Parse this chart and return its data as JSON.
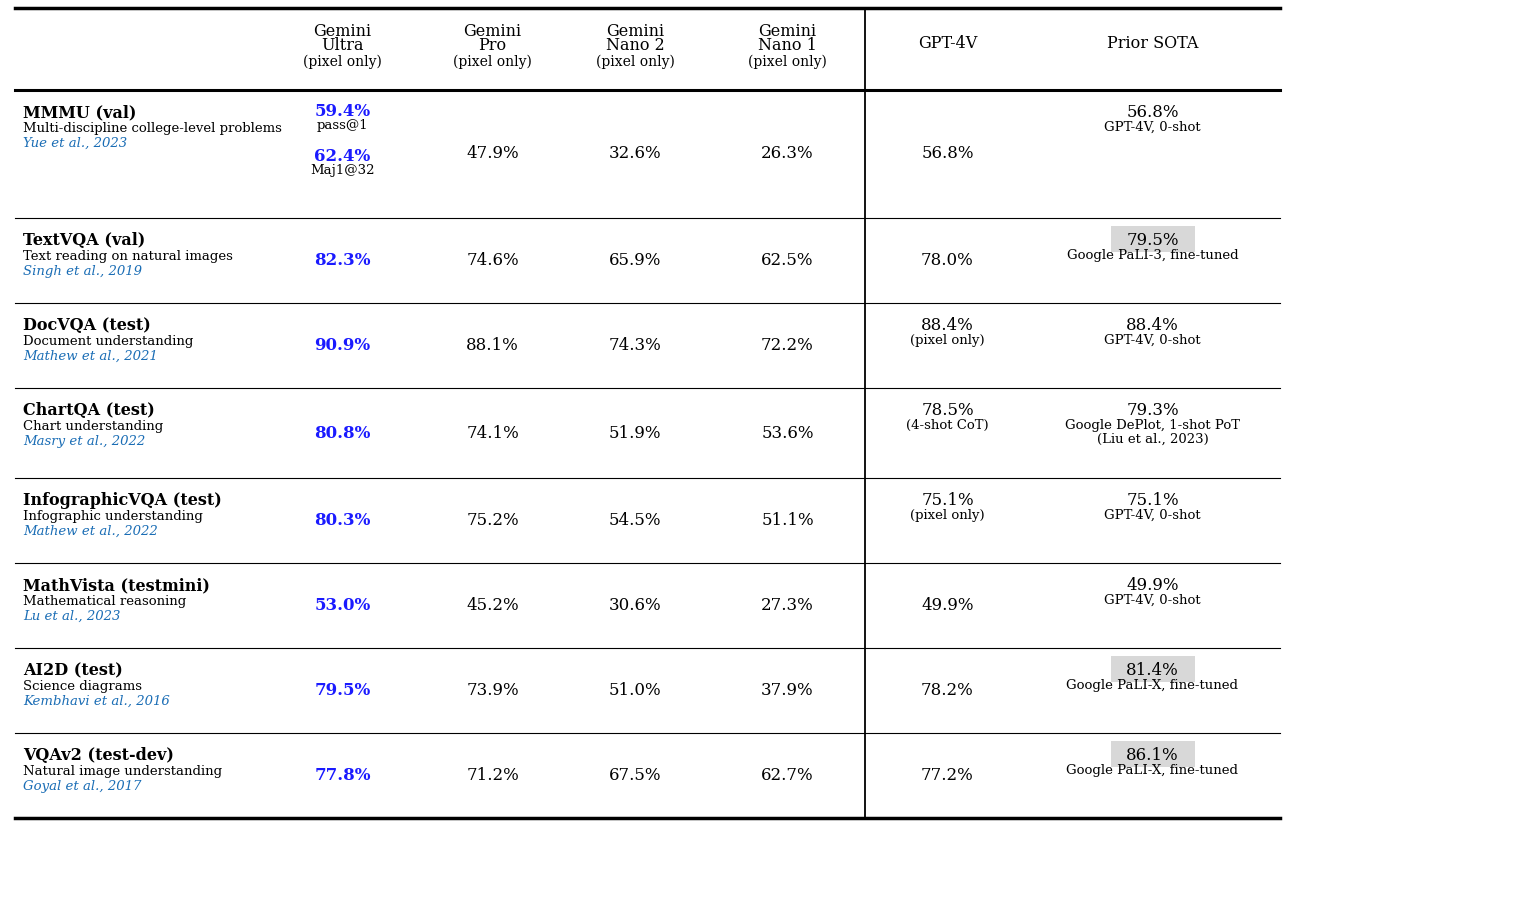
{
  "col_headers": [
    {
      "line1": "",
      "line2": "",
      "line3": ""
    },
    {
      "line1": "Gemini",
      "line2": "Ultra",
      "line3": "(pixel only)"
    },
    {
      "line1": "Gemini",
      "line2": "Pro",
      "line3": "(pixel only)"
    },
    {
      "line1": "Gemini",
      "line2": "Nano 2",
      "line3": "(pixel only)"
    },
    {
      "line1": "Gemini",
      "line2": "Nano 1",
      "line3": "(pixel only)"
    },
    {
      "line1": "GPT-4V",
      "line2": "",
      "line3": ""
    },
    {
      "line1": "Prior SOTA",
      "line2": "",
      "line3": ""
    }
  ],
  "rows": [
    {
      "benchmark": "MMMU (val)",
      "desc": "Multi-discipline college-level problems",
      "ref": "Yue et al., 2023",
      "cells": [
        {
          "text": "59.4%",
          "sub": "pass@1",
          "text2": "62.4%",
          "sub2": "Maj1@32",
          "blue": true,
          "highlight": false
        },
        {
          "text": "47.9%",
          "sub": "",
          "blue": false,
          "highlight": false
        },
        {
          "text": "32.6%",
          "sub": "",
          "blue": false,
          "highlight": false
        },
        {
          "text": "26.3%",
          "sub": "",
          "blue": false,
          "highlight": false
        },
        {
          "text": "56.8%",
          "sub": "",
          "blue": false,
          "highlight": false
        },
        {
          "text": "56.8%",
          "sub": "GPT-4V, 0-shot",
          "blue": false,
          "highlight": false
        }
      ]
    },
    {
      "benchmark": "TextVQA (val)",
      "desc": "Text reading on natural images",
      "ref": "Singh et al., 2019",
      "cells": [
        {
          "text": "82.3%",
          "sub": "",
          "blue": true,
          "highlight": false
        },
        {
          "text": "74.6%",
          "sub": "",
          "blue": false,
          "highlight": false
        },
        {
          "text": "65.9%",
          "sub": "",
          "blue": false,
          "highlight": false
        },
        {
          "text": "62.5%",
          "sub": "",
          "blue": false,
          "highlight": false
        },
        {
          "text": "78.0%",
          "sub": "",
          "blue": false,
          "highlight": false
        },
        {
          "text": "79.5%",
          "sub": "Google PaLI-3, fine-tuned",
          "blue": false,
          "highlight": true
        }
      ]
    },
    {
      "benchmark": "DocVQA (test)",
      "desc": "Document understanding",
      "ref": "Mathew et al., 2021",
      "cells": [
        {
          "text": "90.9%",
          "sub": "",
          "blue": true,
          "highlight": false
        },
        {
          "text": "88.1%",
          "sub": "",
          "blue": false,
          "highlight": false
        },
        {
          "text": "74.3%",
          "sub": "",
          "blue": false,
          "highlight": false
        },
        {
          "text": "72.2%",
          "sub": "",
          "blue": false,
          "highlight": false
        },
        {
          "text": "88.4%",
          "sub": "(pixel only)",
          "blue": false,
          "highlight": false
        },
        {
          "text": "88.4%",
          "sub": "GPT-4V, 0-shot",
          "blue": false,
          "highlight": false
        }
      ]
    },
    {
      "benchmark": "ChartQA (test)",
      "desc": "Chart understanding",
      "ref": "Masry et al., 2022",
      "cells": [
        {
          "text": "80.8%",
          "sub": "",
          "blue": true,
          "highlight": false
        },
        {
          "text": "74.1%",
          "sub": "",
          "blue": false,
          "highlight": false
        },
        {
          "text": "51.9%",
          "sub": "",
          "blue": false,
          "highlight": false
        },
        {
          "text": "53.6%",
          "sub": "",
          "blue": false,
          "highlight": false
        },
        {
          "text": "78.5%",
          "sub": "(4-shot CoT)",
          "blue": false,
          "highlight": false
        },
        {
          "text": "79.3%",
          "sub": "Google DePlot, 1-shot PoT\n(Liu et al., 2023)",
          "blue": false,
          "highlight": false
        }
      ]
    },
    {
      "benchmark": "InfographicVQA (test)",
      "desc": "Infographic understanding",
      "ref": "Mathew et al., 2022",
      "cells": [
        {
          "text": "80.3%",
          "sub": "",
          "blue": true,
          "highlight": false
        },
        {
          "text": "75.2%",
          "sub": "",
          "blue": false,
          "highlight": false
        },
        {
          "text": "54.5%",
          "sub": "",
          "blue": false,
          "highlight": false
        },
        {
          "text": "51.1%",
          "sub": "",
          "blue": false,
          "highlight": false
        },
        {
          "text": "75.1%",
          "sub": "(pixel only)",
          "blue": false,
          "highlight": false
        },
        {
          "text": "75.1%",
          "sub": "GPT-4V, 0-shot",
          "blue": false,
          "highlight": false
        }
      ]
    },
    {
      "benchmark": "MathVista (testmini)",
      "desc": "Mathematical reasoning",
      "ref": "Lu et al., 2023",
      "cells": [
        {
          "text": "53.0%",
          "sub": "",
          "blue": true,
          "highlight": false
        },
        {
          "text": "45.2%",
          "sub": "",
          "blue": false,
          "highlight": false
        },
        {
          "text": "30.6%",
          "sub": "",
          "blue": false,
          "highlight": false
        },
        {
          "text": "27.3%",
          "sub": "",
          "blue": false,
          "highlight": false
        },
        {
          "text": "49.9%",
          "sub": "",
          "blue": false,
          "highlight": false
        },
        {
          "text": "49.9%",
          "sub": "GPT-4V, 0-shot",
          "blue": false,
          "highlight": false
        }
      ]
    },
    {
      "benchmark": "AI2D (test)",
      "desc": "Science diagrams",
      "ref": "Kembhavi et al., 2016",
      "cells": [
        {
          "text": "79.5%",
          "sub": "",
          "blue": true,
          "highlight": false
        },
        {
          "text": "73.9%",
          "sub": "",
          "blue": false,
          "highlight": false
        },
        {
          "text": "51.0%",
          "sub": "",
          "blue": false,
          "highlight": false
        },
        {
          "text": "37.9%",
          "sub": "",
          "blue": false,
          "highlight": false
        },
        {
          "text": "78.2%",
          "sub": "",
          "blue": false,
          "highlight": false
        },
        {
          "text": "81.4%",
          "sub": "Google PaLI-X, fine-tuned",
          "blue": false,
          "highlight": true
        }
      ]
    },
    {
      "benchmark": "VQAv2 (test-dev)",
      "desc": "Natural image understanding",
      "ref": "Goyal et al., 2017",
      "cells": [
        {
          "text": "77.8%",
          "sub": "",
          "blue": true,
          "highlight": false
        },
        {
          "text": "71.2%",
          "sub": "",
          "blue": false,
          "highlight": false
        },
        {
          "text": "67.5%",
          "sub": "",
          "blue": false,
          "highlight": false
        },
        {
          "text": "62.7%",
          "sub": "",
          "blue": false,
          "highlight": false
        },
        {
          "text": "77.2%",
          "sub": "",
          "blue": false,
          "highlight": false
        },
        {
          "text": "86.1%",
          "sub": "Google PaLI-X, fine-tuned",
          "blue": false,
          "highlight": true
        }
      ]
    }
  ],
  "background_color": "#ffffff",
  "blue_color": "#1a1aff",
  "ref_color": "#1a6db5",
  "highlight_bg": "#d8d8d8"
}
